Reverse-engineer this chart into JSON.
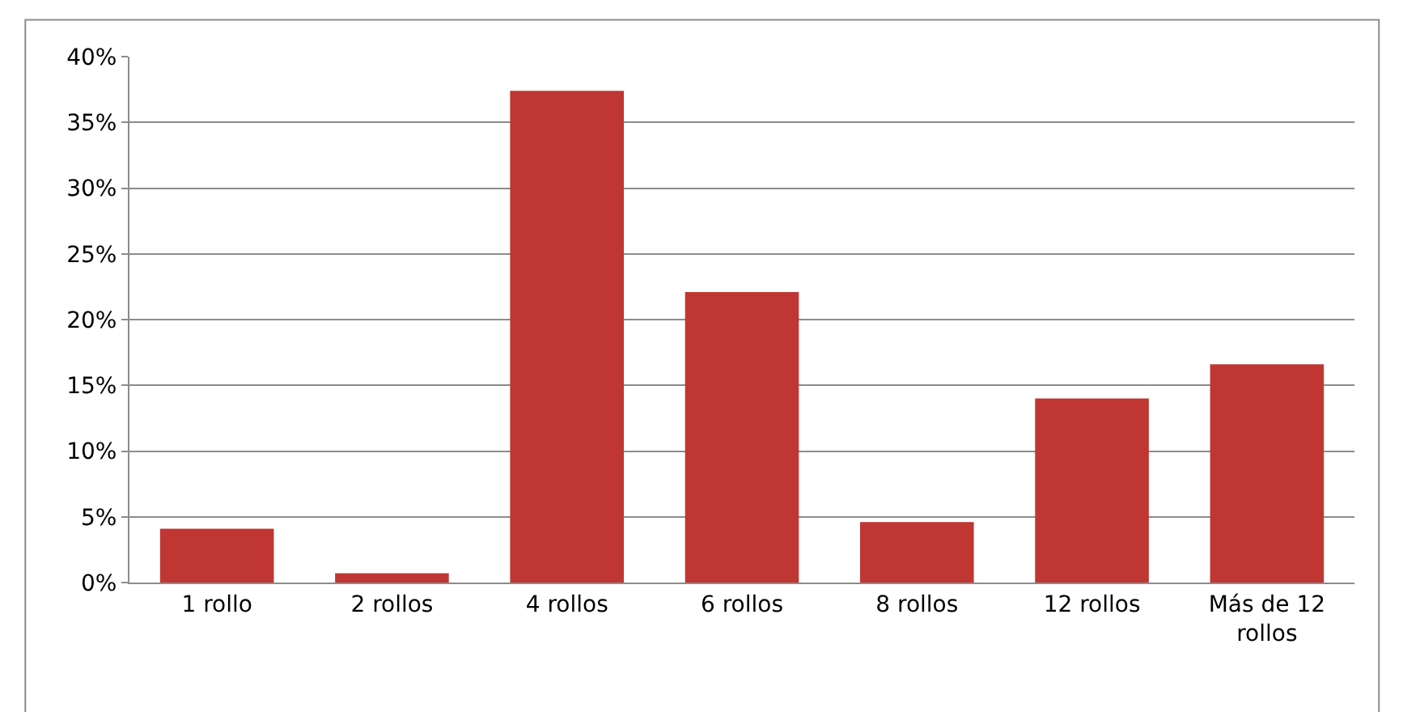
{
  "chart_data": {
    "type": "bar",
    "categories": [
      "1 rollo",
      "2 rollos",
      "4 rollos",
      "6 rollos",
      "8 rollos",
      "12 rollos",
      "Más de 12 rollos"
    ],
    "values": [
      4.1,
      0.7,
      37.4,
      22.1,
      4.6,
      14.0,
      16.6
    ],
    "color": "#bf3632",
    "ylim": [
      0,
      40
    ],
    "yticks": [
      {
        "value": 0,
        "label": "0%"
      },
      {
        "value": 5,
        "label": "5%"
      },
      {
        "value": 10,
        "label": "10%"
      },
      {
        "value": 15,
        "label": "15%"
      },
      {
        "value": 20,
        "label": "20%"
      },
      {
        "value": 25,
        "label": "25%"
      },
      {
        "value": 30,
        "label": "30%"
      },
      {
        "value": 35,
        "label": "35%"
      },
      {
        "value": 40,
        "label": "40%"
      }
    ],
    "grid": "y",
    "legend": false
  }
}
